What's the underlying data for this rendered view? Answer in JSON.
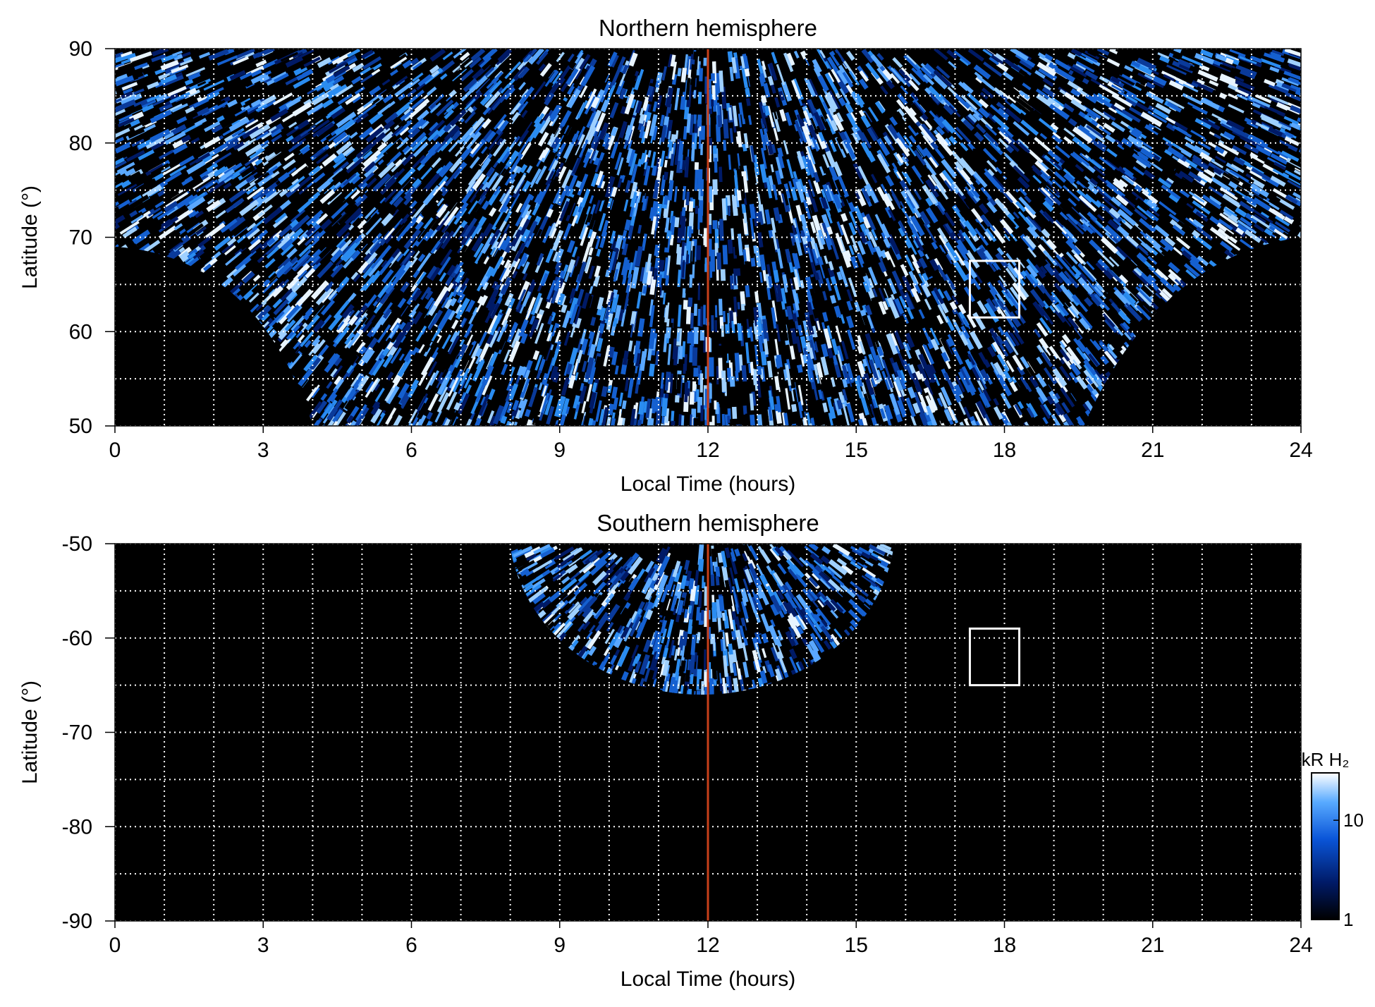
{
  "chart_data": [
    {
      "type": "heatmap",
      "title": "Northern hemisphere",
      "xlabel": "Local Time (hours)",
      "ylabel": "Latitude (°)",
      "xlim": [
        0,
        24
      ],
      "xticks": [
        0,
        3,
        6,
        9,
        12,
        15,
        18,
        21,
        24
      ],
      "ylim": [
        50,
        90
      ],
      "yticks": [
        50,
        60,
        70,
        80,
        90
      ],
      "xgrid": [
        0,
        1,
        2,
        3,
        4,
        5,
        6,
        7,
        8,
        9,
        10,
        11,
        12,
        13,
        14,
        15,
        16,
        17,
        18,
        19,
        20,
        21,
        22,
        23,
        24
      ],
      "ygrid": [
        50,
        55,
        60,
        65,
        70,
        75,
        80,
        85,
        90
      ],
      "vline": {
        "value": 12,
        "color": "#c8401a"
      },
      "box": {
        "x": [
          17.3,
          18.3
        ],
        "y": [
          61.5,
          67.5
        ],
        "color": "#ffffff"
      }
    },
    {
      "type": "heatmap",
      "title": "Southern hemisphere",
      "xlabel": "Local Time (hours)",
      "ylabel": "Latitude (°)",
      "xlim": [
        0,
        24
      ],
      "xticks": [
        0,
        3,
        6,
        9,
        12,
        15,
        18,
        21,
        24
      ],
      "ylim": [
        -90,
        -50
      ],
      "yticks": [
        -90,
        -80,
        -70,
        -60,
        -50
      ],
      "xgrid": [
        0,
        1,
        2,
        3,
        4,
        5,
        6,
        7,
        8,
        9,
        10,
        11,
        12,
        13,
        14,
        15,
        16,
        17,
        18,
        19,
        20,
        21,
        22,
        23,
        24
      ],
      "ygrid": [
        -90,
        -85,
        -80,
        -75,
        -70,
        -65,
        -60,
        -55,
        -50
      ],
      "vline": {
        "value": 12,
        "color": "#c8401a"
      },
      "box": {
        "x": [
          17.3,
          18.3
        ],
        "y": [
          -65,
          -59
        ],
        "color": "#ffffff"
      },
      "colorbar": {
        "label": "kR H₂",
        "lim": [
          1,
          30
        ],
        "ticks": [
          1,
          10
        ],
        "log": true
      }
    }
  ]
}
